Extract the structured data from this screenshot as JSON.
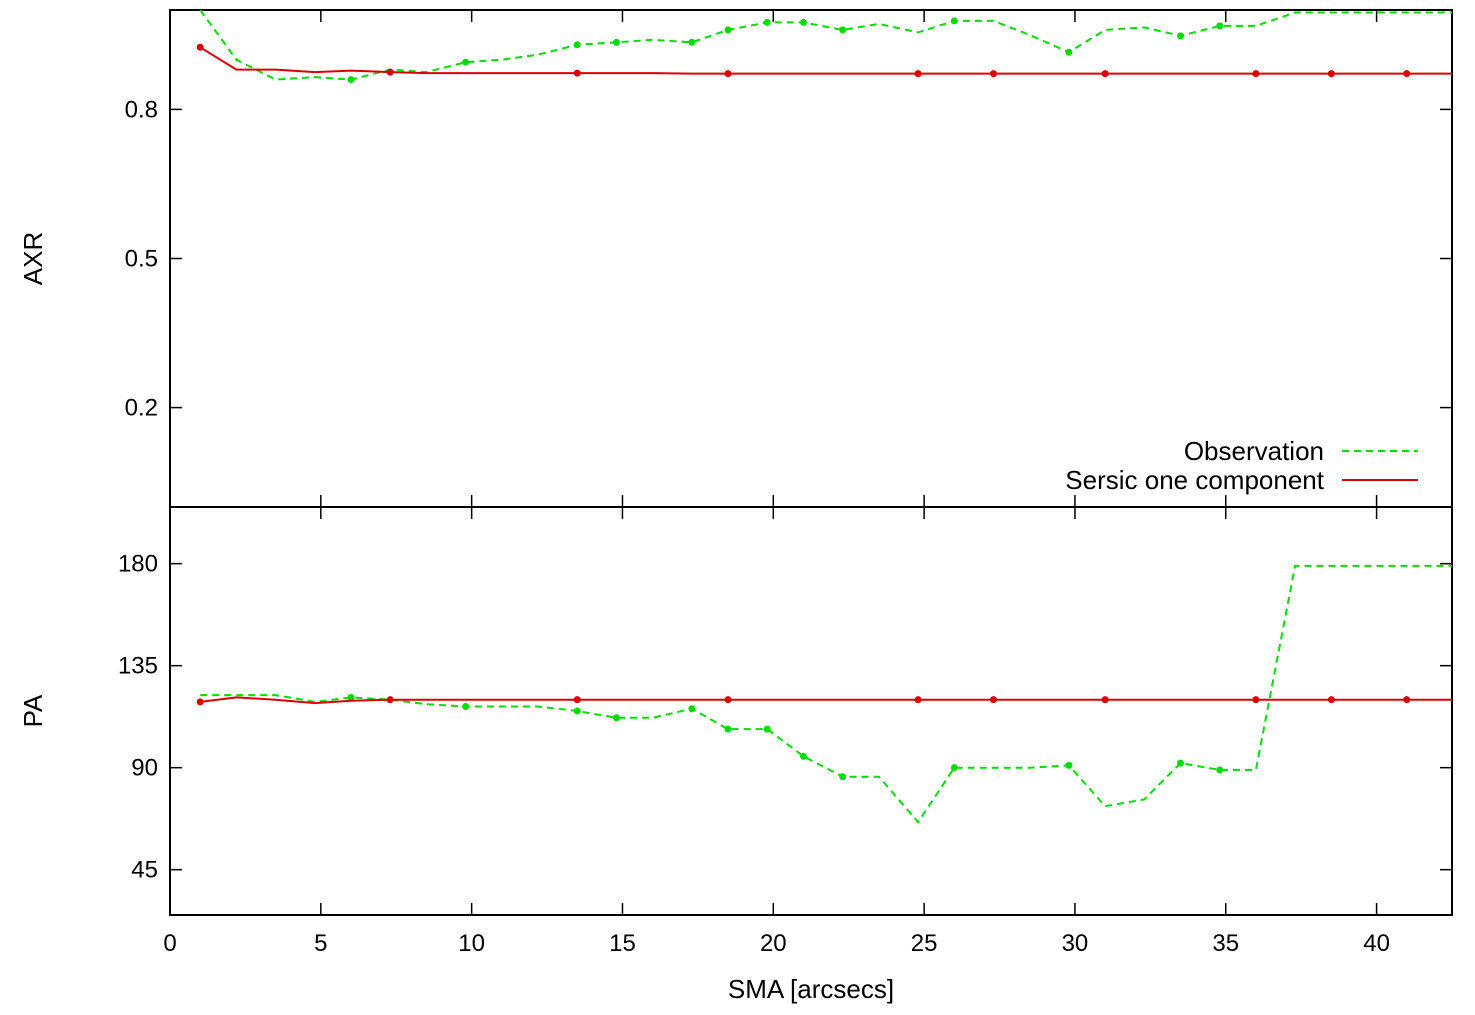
{
  "chart_data": [
    {
      "type": "line",
      "panel": "top",
      "ylabel": "AXR",
      "xlim": [
        0,
        42.5
      ],
      "ylim": [
        0,
        1.0
      ],
      "yticks": [
        0.2,
        0.5,
        0.8
      ],
      "grid": false,
      "legend_position": "bottom-right",
      "series": [
        {
          "name": "Observation",
          "color": "#00dd00",
          "style": "dashed",
          "x": [
            1.0,
            2.2,
            3.5,
            4.8,
            6.0,
            7.3,
            8.5,
            9.8,
            11.0,
            12.2,
            13.5,
            14.8,
            16.0,
            17.3,
            18.5,
            19.8,
            21.0,
            22.3,
            23.5,
            24.8,
            26.0,
            27.3,
            28.5,
            29.8,
            31.0,
            32.3,
            33.5,
            34.8,
            36.0,
            37.3,
            38.5,
            39.8,
            41.0,
            42.5
          ],
          "y": [
            1.0,
            0.9,
            0.86,
            0.865,
            0.86,
            0.88,
            0.875,
            0.895,
            0.9,
            0.91,
            0.93,
            0.935,
            0.94,
            0.935,
            0.96,
            0.975,
            0.975,
            0.96,
            0.972,
            0.955,
            0.978,
            0.978,
            0.95,
            0.915,
            0.96,
            0.965,
            0.948,
            0.968,
            0.968,
            0.995,
            0.995,
            0.995,
            0.995,
            0.995
          ],
          "marker_x": [
            6.0,
            9.8,
            13.5,
            14.8,
            17.3,
            18.5,
            19.8,
            21.0,
            22.3,
            26.0,
            29.8,
            33.5,
            34.8
          ]
        },
        {
          "name": "Sersic one component",
          "color": "#dd0000",
          "style": "solid",
          "x": [
            1.0,
            2.2,
            3.5,
            4.8,
            6.0,
            7.3,
            8.5,
            9.8,
            11.0,
            12.2,
            13.5,
            14.8,
            16.0,
            17.3,
            18.5,
            19.8,
            21.0,
            22.3,
            23.5,
            24.8,
            26.0,
            27.3,
            28.5,
            29.8,
            31.0,
            32.3,
            33.5,
            34.8,
            36.0,
            37.3,
            38.5,
            39.8,
            41.0,
            42.5
          ],
          "y": [
            0.925,
            0.88,
            0.88,
            0.875,
            0.878,
            0.875,
            0.873,
            0.873,
            0.873,
            0.873,
            0.873,
            0.873,
            0.873,
            0.872,
            0.872,
            0.872,
            0.872,
            0.872,
            0.872,
            0.872,
            0.872,
            0.872,
            0.872,
            0.872,
            0.872,
            0.872,
            0.872,
            0.872,
            0.872,
            0.872,
            0.872,
            0.872,
            0.872,
            0.872
          ],
          "marker_x": [
            1.0,
            7.3,
            13.5,
            18.5,
            24.8,
            27.3,
            31.0,
            36.0,
            38.5,
            41.0
          ]
        }
      ]
    },
    {
      "type": "line",
      "panel": "bottom",
      "ylabel": "PA",
      "xlabel": "SMA [arcsecs]",
      "xlim": [
        0,
        42.5
      ],
      "ylim": [
        25,
        205
      ],
      "xticks": [
        0,
        5,
        10,
        15,
        20,
        25,
        30,
        35,
        40
      ],
      "yticks": [
        45,
        90,
        135,
        180
      ],
      "grid": false,
      "series": [
        {
          "name": "Observation",
          "color": "#00dd00",
          "style": "dashed",
          "x": [
            1.0,
            2.2,
            3.5,
            4.8,
            6.0,
            7.3,
            8.5,
            9.8,
            11.0,
            12.2,
            13.5,
            14.8,
            16.0,
            17.3,
            18.5,
            19.8,
            21.0,
            22.3,
            23.5,
            24.8,
            26.0,
            27.3,
            28.5,
            29.8,
            31.0,
            32.3,
            33.5,
            34.8,
            36.0,
            37.3,
            38.5,
            39.8,
            41.0,
            42.5
          ],
          "y": [
            122,
            122,
            122,
            119,
            121,
            120,
            118,
            117,
            117,
            117,
            115,
            112,
            112,
            116,
            107,
            107,
            95,
            86,
            86,
            66,
            90,
            90,
            90,
            91,
            73,
            76,
            92,
            89,
            89,
            179,
            179,
            179,
            179,
            179
          ],
          "marker_x": [
            6.0,
            9.8,
            13.5,
            14.8,
            17.3,
            18.5,
            19.8,
            21.0,
            22.3,
            26.0,
            29.8,
            33.5,
            34.8
          ]
        },
        {
          "name": "Sersic one component",
          "color": "#dd0000",
          "style": "solid",
          "x": [
            1.0,
            2.2,
            3.5,
            4.8,
            6.0,
            7.3,
            8.5,
            9.8,
            11.0,
            12.2,
            13.5,
            14.8,
            16.0,
            17.3,
            18.5,
            19.8,
            21.0,
            22.3,
            23.5,
            24.8,
            26.0,
            27.3,
            28.5,
            29.8,
            31.0,
            32.3,
            33.5,
            34.8,
            36.0,
            37.3,
            38.5,
            39.8,
            41.0,
            42.5
          ],
          "y": [
            119,
            121,
            120,
            118.5,
            119.5,
            120,
            120,
            120,
            120,
            120,
            120,
            120,
            120,
            120,
            120,
            120,
            120,
            120,
            120,
            120,
            120,
            120,
            120,
            120,
            120,
            120,
            120,
            120,
            120,
            120,
            120,
            120,
            120,
            120
          ],
          "marker_x": [
            1.0,
            7.3,
            13.5,
            18.5,
            24.8,
            27.3,
            31.0,
            36.0,
            38.5,
            41.0
          ]
        }
      ]
    }
  ]
}
